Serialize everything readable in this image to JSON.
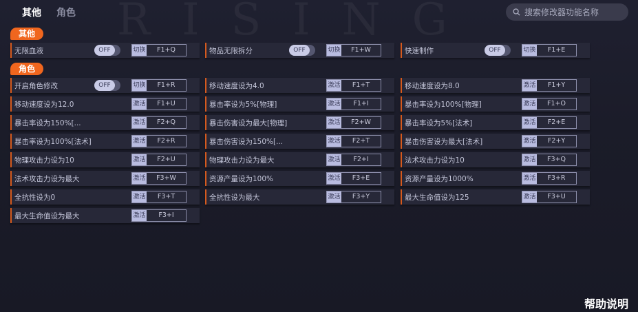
{
  "tabs": [
    "其他",
    "角色"
  ],
  "search": {
    "placeholder": "搜索修改器功能名称",
    "icon": "search-icon"
  },
  "watermark": "RISING",
  "colors": {
    "accent": "#f0661e",
    "row_bg": "#272838",
    "key_label_bg": "#b9bce0"
  },
  "sections": [
    {
      "title": "其他",
      "items": [
        {
          "name": "无限血液",
          "toggle": "OFF",
          "key_label": "切换",
          "key": "F1+Q"
        },
        {
          "name": "物品无限拆分",
          "toggle": "OFF",
          "key_label": "切换",
          "key": "F1+W"
        },
        {
          "name": "快速制作",
          "toggle": "OFF",
          "key_label": "切换",
          "key": "F1+E"
        }
      ]
    },
    {
      "title": "角色",
      "items": [
        {
          "name": "开启角色修改",
          "toggle": "OFF",
          "key_label": "切换",
          "key": "F1+R"
        },
        {
          "name": "移动速度设为4.0",
          "key_label": "激活",
          "key": "F1+T"
        },
        {
          "name": "移动速度设为8.0",
          "key_label": "激活",
          "key": "F1+Y"
        },
        {
          "name": "移动速度设为12.0",
          "key_label": "激活",
          "key": "F1+U"
        },
        {
          "name": "暴击率设为5%[物理]",
          "key_label": "激活",
          "key": "F1+I"
        },
        {
          "name": "暴击率设为100%[物理]",
          "key_label": "激活",
          "key": "F1+O"
        },
        {
          "name": "暴击率设为150%[...",
          "key_label": "激活",
          "key": "F2+Q"
        },
        {
          "name": "暴击伤害设为最大[物理]",
          "key_label": "激活",
          "key": "F2+W"
        },
        {
          "name": "暴击率设为5%[法术]",
          "key_label": "激活",
          "key": "F2+E"
        },
        {
          "name": "暴击率设为100%[法术]",
          "key_label": "激活",
          "key": "F2+R"
        },
        {
          "name": "暴击伤害设为150%[...",
          "key_label": "激活",
          "key": "F2+T"
        },
        {
          "name": "暴击伤害设为最大[法术]",
          "key_label": "激活",
          "key": "F2+Y"
        },
        {
          "name": "物理攻击力设为10",
          "key_label": "激活",
          "key": "F2+U"
        },
        {
          "name": "物理攻击力设为最大",
          "key_label": "激活",
          "key": "F2+I"
        },
        {
          "name": "法术攻击力设为10",
          "key_label": "激活",
          "key": "F3+Q"
        },
        {
          "name": "法术攻击力设为最大",
          "key_label": "激活",
          "key": "F3+W"
        },
        {
          "name": "资源产量设为100%",
          "key_label": "激活",
          "key": "F3+E"
        },
        {
          "name": "资源产量设为1000%",
          "key_label": "激活",
          "key": "F3+R"
        },
        {
          "name": "全抗性设为0",
          "key_label": "激活",
          "key": "F3+T"
        },
        {
          "name": "全抗性设为最大",
          "key_label": "激活",
          "key": "F3+Y"
        },
        {
          "name": "最大生命值设为125",
          "key_label": "激活",
          "key": "F3+U"
        },
        {
          "name": "最大生命值设为最大",
          "key_label": "激活",
          "key": "F3+I"
        }
      ]
    }
  ],
  "help": "帮助说明"
}
